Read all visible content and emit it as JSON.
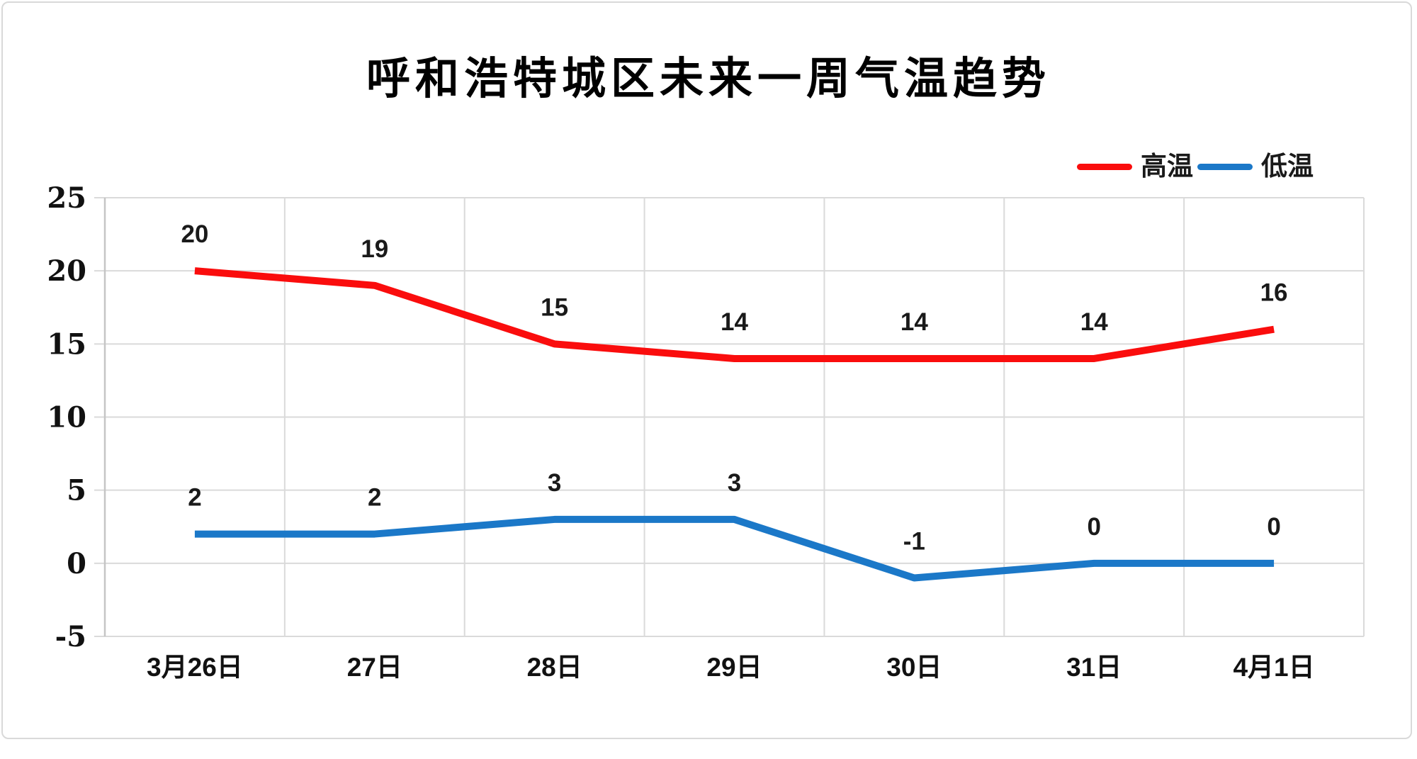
{
  "page": {
    "background_color": "#ffffff",
    "frame_border_color": "#d9d9d9"
  },
  "chart_data": {
    "type": "line",
    "title": "呼和浩特城区未来一周气温趋势",
    "categories": [
      "3月26日",
      "27日",
      "28日",
      "29日",
      "30日",
      "31日",
      "4月1日"
    ],
    "series": [
      {
        "name": "高温",
        "color": "#fa0d0d",
        "values": [
          20,
          19,
          15,
          14,
          14,
          14,
          16
        ]
      },
      {
        "name": "低温",
        "color": "#1b78c8",
        "values": [
          2,
          2,
          3,
          3,
          -1,
          0,
          0
        ]
      }
    ],
    "ylim": [
      -5,
      25
    ],
    "y_tick_step": 5,
    "y_tick_labels": [
      "-5",
      "0",
      "5",
      "10",
      "15",
      "20",
      "25"
    ],
    "xlabel": "",
    "ylabel": "",
    "grid": true,
    "grid_color": "#dadada",
    "axis_color": "#c5c5c5",
    "legend_position": "top-right",
    "data_labels": true
  }
}
